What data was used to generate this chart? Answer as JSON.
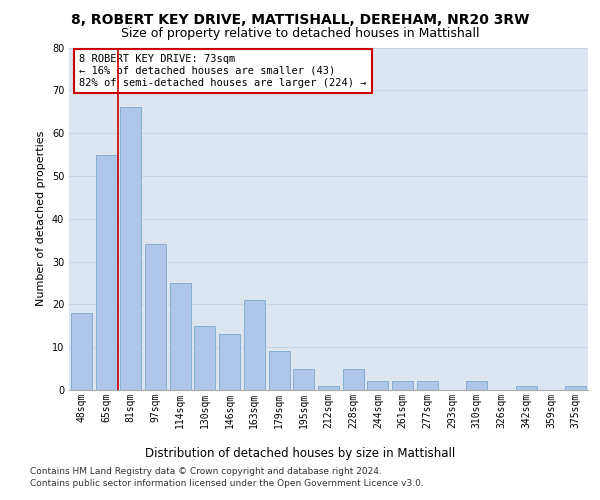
{
  "title": "8, ROBERT KEY DRIVE, MATTISHALL, DEREHAM, NR20 3RW",
  "subtitle": "Size of property relative to detached houses in Mattishall",
  "xlabel": "Distribution of detached houses by size in Mattishall",
  "ylabel": "Number of detached properties",
  "categories": [
    "48sqm",
    "65sqm",
    "81sqm",
    "97sqm",
    "114sqm",
    "130sqm",
    "146sqm",
    "163sqm",
    "179sqm",
    "195sqm",
    "212sqm",
    "228sqm",
    "244sqm",
    "261sqm",
    "277sqm",
    "293sqm",
    "310sqm",
    "326sqm",
    "342sqm",
    "359sqm",
    "375sqm"
  ],
  "values": [
    18,
    55,
    66,
    34,
    25,
    15,
    13,
    21,
    9,
    5,
    1,
    5,
    2,
    2,
    2,
    0,
    2,
    0,
    1,
    0,
    1
  ],
  "bar_color": "#aec6e8",
  "bar_edge_color": "#7aa8d0",
  "vline_color": "#cc0000",
  "vline_x": 1.5,
  "annotation_text": "8 ROBERT KEY DRIVE: 73sqm\n← 16% of detached houses are smaller (43)\n82% of semi-detached houses are larger (224) →",
  "annotation_box_color": "#ffffff",
  "annotation_box_edge_color": "#cc0000",
  "ylim": [
    0,
    80
  ],
  "yticks": [
    0,
    10,
    20,
    30,
    40,
    50,
    60,
    70,
    80
  ],
  "grid_color": "#c8d4e8",
  "background_color": "#dde6f0",
  "footer_line1": "Contains HM Land Registry data © Crown copyright and database right 2024.",
  "footer_line2": "Contains public sector information licensed under the Open Government Licence v3.0.",
  "title_fontsize": 10,
  "subtitle_fontsize": 9,
  "xlabel_fontsize": 8.5,
  "ylabel_fontsize": 8,
  "tick_fontsize": 7,
  "annotation_fontsize": 7.5,
  "footer_fontsize": 6.5
}
